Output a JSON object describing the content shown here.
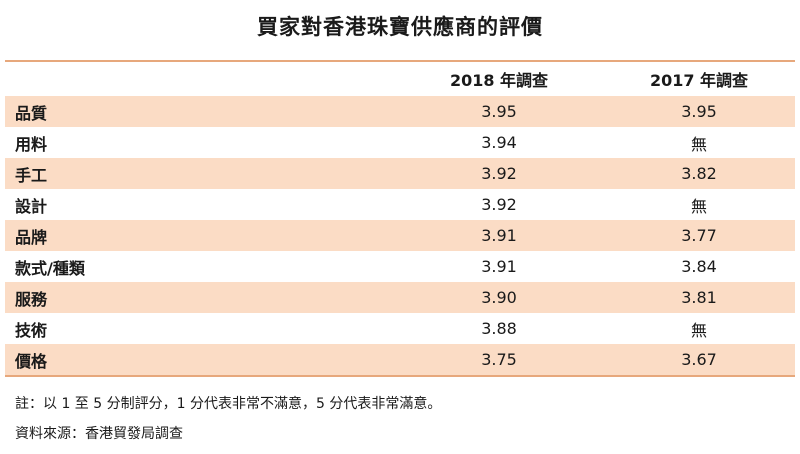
{
  "title": "買家對香港珠寶供應商的評價",
  "table": {
    "headers": [
      "",
      "2018 年調查",
      "2017 年調查"
    ],
    "rows": [
      {
        "label": "品質",
        "y2018": "3.95",
        "y2017": "3.95"
      },
      {
        "label": "用料",
        "y2018": "3.94",
        "y2017": "無"
      },
      {
        "label": "手工",
        "y2018": "3.92",
        "y2017": "3.82"
      },
      {
        "label": "設計",
        "y2018": "3.92",
        "y2017": "無"
      },
      {
        "label": "品牌",
        "y2018": "3.91",
        "y2017": "3.77"
      },
      {
        "label": "款式/種類",
        "y2018": "3.91",
        "y2017": "3.84"
      },
      {
        "label": "服務",
        "y2018": "3.90",
        "y2017": "3.81"
      },
      {
        "label": "技術",
        "y2018": "3.88",
        "y2017": "無"
      },
      {
        "label": "價格",
        "y2018": "3.75",
        "y2017": "3.67"
      }
    ]
  },
  "notes": {
    "note": "註：以 1 至 5 分制評分，1 分代表非常不滿意，5 分代表非常滿意。",
    "source": "資料來源：香港貿發局調查"
  },
  "colors": {
    "shade": "#fbdcc5",
    "rule": "#e7a87c"
  }
}
